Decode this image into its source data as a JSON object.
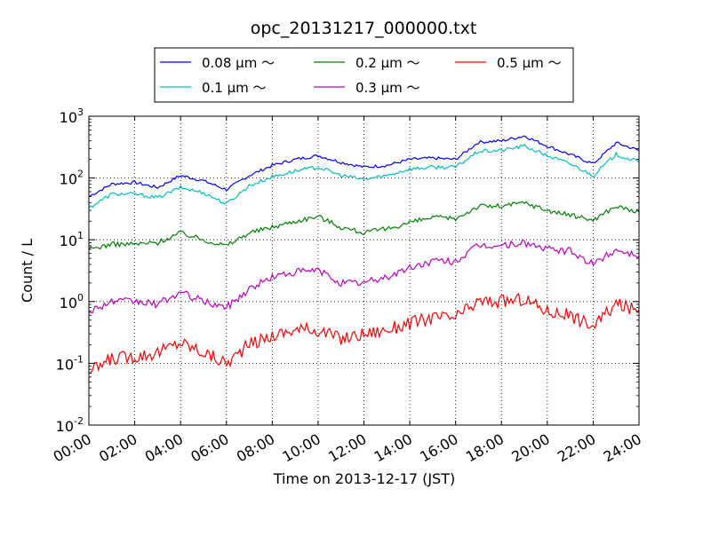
{
  "chart_data": {
    "type": "line",
    "title": "opc_20131217_000000.txt",
    "xlabel": "Time on 2013-12-17 (JST)",
    "ylabel": "Count / L",
    "yscale": "log",
    "xlim": [
      "00:00",
      "24:00"
    ],
    "ylim": [
      0.01,
      1000
    ],
    "grid": true,
    "legend_position": "top-center",
    "x_ticks": [
      "00:00",
      "02:00",
      "04:00",
      "06:00",
      "08:00",
      "10:00",
      "12:00",
      "14:00",
      "16:00",
      "18:00",
      "20:00",
      "22:00",
      "24:00"
    ],
    "y_ticks": [
      {
        "base": "10",
        "exp": "-2",
        "value": 0.01
      },
      {
        "base": "10",
        "exp": "-1",
        "value": 0.1
      },
      {
        "base": "10",
        "exp": "0",
        "value": 1
      },
      {
        "base": "10",
        "exp": "1",
        "value": 10
      },
      {
        "base": "10",
        "exp": "2",
        "value": 100
      },
      {
        "base": "10",
        "exp": "3",
        "value": 1000
      }
    ],
    "x": [
      "00:00",
      "01:00",
      "02:00",
      "03:00",
      "04:00",
      "05:00",
      "06:00",
      "07:00",
      "08:00",
      "09:00",
      "10:00",
      "11:00",
      "12:00",
      "13:00",
      "14:00",
      "15:00",
      "16:00",
      "17:00",
      "18:00",
      "19:00",
      "20:00",
      "21:00",
      "22:00",
      "23:00",
      "24:00"
    ],
    "series": [
      {
        "name": "0.08 μm ～",
        "color": "#0000ff",
        "values": [
          50,
          80,
          85,
          70,
          110,
          90,
          65,
          110,
          160,
          200,
          230,
          180,
          150,
          160,
          200,
          210,
          200,
          380,
          400,
          480,
          330,
          240,
          170,
          370,
          280
        ]
      },
      {
        "name": "0.1 μm ～",
        "color": "#00bfbf",
        "values": [
          33,
          55,
          55,
          48,
          70,
          58,
          38,
          75,
          105,
          130,
          150,
          110,
          95,
          110,
          140,
          150,
          150,
          270,
          280,
          330,
          230,
          170,
          110,
          240,
          180
        ]
      },
      {
        "name": "0.2 μm ～",
        "color": "#008000",
        "values": [
          7,
          8.5,
          8.5,
          9,
          13,
          10,
          8,
          13,
          16,
          20,
          24,
          16,
          13,
          15,
          19,
          23,
          22,
          35,
          35,
          40,
          30,
          25,
          21,
          35,
          28
        ]
      },
      {
        "name": "0.3 μm ～",
        "color": "#bf00bf",
        "values": [
          0.7,
          1.0,
          1.0,
          0.9,
          1.4,
          1.0,
          0.8,
          1.6,
          2.5,
          3.0,
          3.2,
          2.0,
          2.0,
          2.5,
          3.5,
          4.5,
          4.5,
          8,
          8,
          9,
          7,
          6.5,
          4,
          7,
          5.5
        ]
      },
      {
        "name": "0.5 μm ～",
        "color": "#ff0000",
        "values": [
          0.07,
          0.12,
          0.13,
          0.15,
          0.22,
          0.15,
          0.1,
          0.2,
          0.28,
          0.35,
          0.35,
          0.25,
          0.3,
          0.35,
          0.45,
          0.55,
          0.55,
          1.0,
          1.0,
          1.1,
          0.7,
          0.6,
          0.4,
          0.9,
          0.7
        ]
      }
    ]
  }
}
